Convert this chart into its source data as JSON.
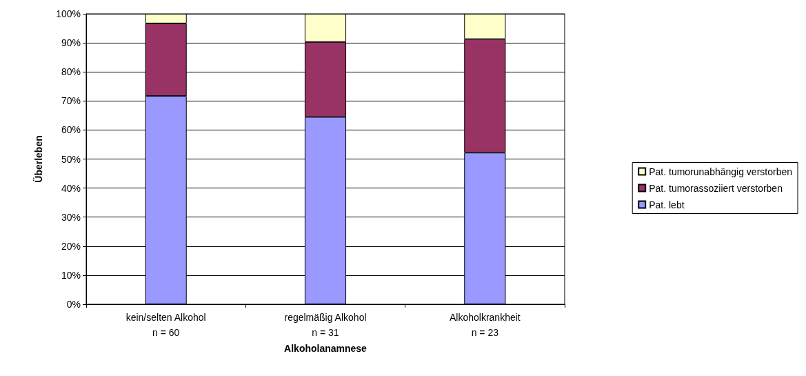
{
  "chart_data": {
    "type": "bar",
    "stacked": true,
    "xlabel": "Alkoholanamnese",
    "ylabel": "Überleben",
    "categories": [
      "kein/selten Alkohol\nn = 60",
      "regelmäßig Alkohol\nn = 31",
      "Alkoholkrankheit\nn = 23"
    ],
    "series": [
      {
        "name": "Pat. lebt",
        "color": "#9999ff",
        "values": [
          71.7,
          64.5,
          52.2
        ]
      },
      {
        "name": "Pat. tumorassoziiert verstorben",
        "color": "#993366",
        "values": [
          25,
          25.8,
          39.1
        ]
      },
      {
        "name": "Pat. tumorunabhängig verstorben",
        "color": "#ffffcc",
        "values": [
          3.3,
          9.7,
          8.7
        ]
      }
    ],
    "ylim": [
      0,
      100
    ],
    "yticks": [
      {
        "value": 0,
        "label": "0%"
      },
      {
        "value": 10,
        "label": "10%"
      },
      {
        "value": 20,
        "label": "20%"
      },
      {
        "value": 30,
        "label": "30%"
      },
      {
        "value": 40,
        "label": "40%"
      },
      {
        "value": 50,
        "label": "50%"
      },
      {
        "value": 60,
        "label": "60%"
      },
      {
        "value": 70,
        "label": "70%"
      },
      {
        "value": 80,
        "label": "80%"
      },
      {
        "value": 90,
        "label": "90%"
      },
      {
        "value": 100,
        "label": "100%"
      }
    ],
    "grid": "y",
    "legend": "right"
  }
}
